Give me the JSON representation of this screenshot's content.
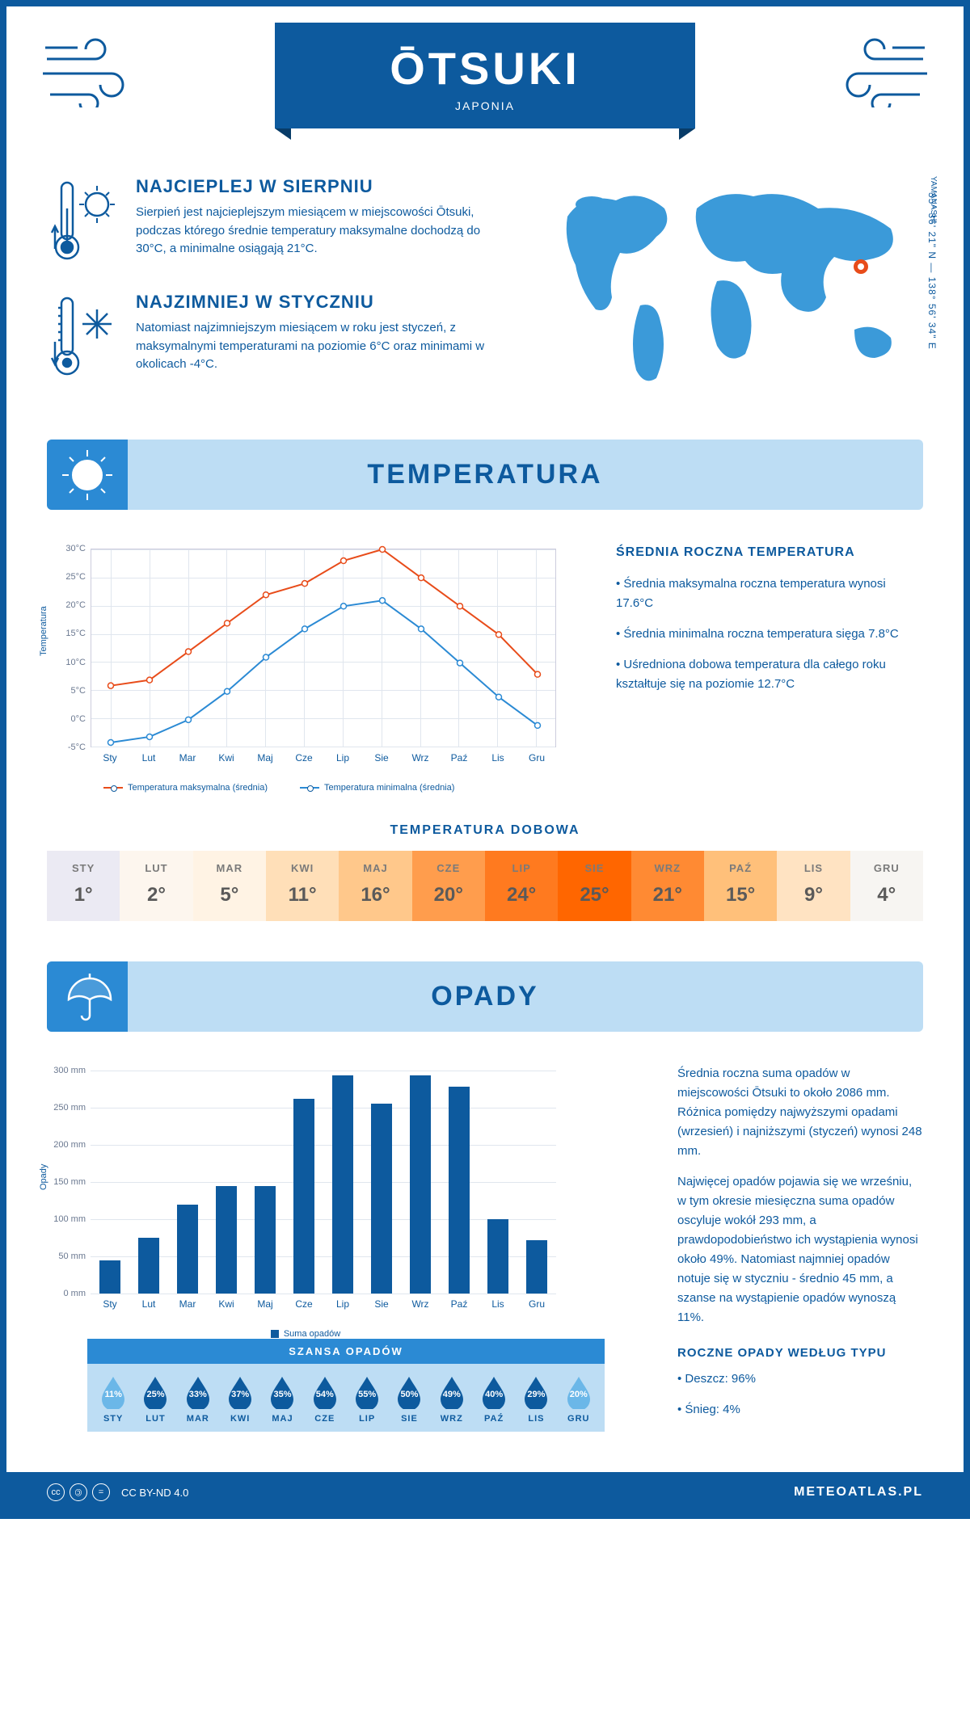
{
  "header": {
    "city": "ŌTSUKI",
    "country": "JAPONIA"
  },
  "coords": "35° 36' 21\" N — 138° 56' 34\" E",
  "region": "YAMANASHI",
  "marker": {
    "left_pct": 82,
    "top_pct": 38
  },
  "intro": {
    "hot": {
      "title": "NAJCIEPLEJ W SIERPNIU",
      "body": "Sierpień jest najcieplejszym miesiącem w miejscowości Ōtsuki, podczas którego średnie temperatury maksymalne dochodzą do 30°C, a minimalne osiągają 21°C."
    },
    "cold": {
      "title": "NAJZIMNIEJ W STYCZNIU",
      "body": "Natomiast najzimniejszym miesiącem w roku jest styczeń, z maksymalnymi temperaturami na poziomie 6°C oraz minimami w okolicach -4°C."
    }
  },
  "temp_section": {
    "title": "TEMPERATURA",
    "chart": {
      "type": "line",
      "ylabel": "Temperatura",
      "ymin": -5,
      "ymax": 30,
      "ystep": 5,
      "yunit": "°C",
      "months": [
        "Sty",
        "Lut",
        "Mar",
        "Kwi",
        "Maj",
        "Cze",
        "Lip",
        "Sie",
        "Wrz",
        "Paź",
        "Lis",
        "Gru"
      ],
      "series": [
        {
          "name": "Temperatura maksymalna (średnia)",
          "color": "#e84c1a",
          "values": [
            6,
            7,
            12,
            17,
            22,
            24,
            28,
            30,
            25,
            20,
            15,
            8
          ]
        },
        {
          "name": "Temperatura minimalna (średnia)",
          "color": "#2b8ad4",
          "values": [
            -4,
            -3,
            0,
            5,
            11,
            16,
            20,
            21,
            16,
            10,
            4,
            -1
          ]
        }
      ],
      "grid_color": "#e0e6ee",
      "label_fontsize": 11
    },
    "side": {
      "title": "ŚREDNIA ROCZNA TEMPERATURA",
      "bullets": [
        "Średnia maksymalna roczna temperatura wynosi 17.6°C",
        "Średnia minimalna roczna temperatura sięga 7.8°C",
        "Uśredniona dobowa temperatura dla całego roku kształtuje się na poziomie 12.7°C"
      ]
    },
    "daily": {
      "title": "TEMPERATURA DOBOWA",
      "months": [
        "STY",
        "LUT",
        "MAR",
        "KWI",
        "MAJ",
        "CZE",
        "LIP",
        "SIE",
        "WRZ",
        "PAŹ",
        "LIS",
        "GRU"
      ],
      "values": [
        "1°",
        "2°",
        "5°",
        "11°",
        "16°",
        "20°",
        "24°",
        "25°",
        "21°",
        "15°",
        "9°",
        "4°"
      ],
      "colors": [
        "#ebeaf3",
        "#fdf6ee",
        "#fff3e4",
        "#ffdfb8",
        "#ffc88b",
        "#ff9d4d",
        "#ff7a1f",
        "#ff6600",
        "#ff8a33",
        "#ffc07a",
        "#ffe3c2",
        "#f7f5f2"
      ]
    }
  },
  "precip_section": {
    "title": "OPADY",
    "chart": {
      "type": "bar",
      "ylabel": "Opady",
      "ymin": 0,
      "ymax": 300,
      "ystep": 50,
      "yunit": " mm",
      "months": [
        "Sty",
        "Lut",
        "Mar",
        "Kwi",
        "Maj",
        "Cze",
        "Lip",
        "Sie",
        "Wrz",
        "Paź",
        "Lis",
        "Gru"
      ],
      "values": [
        45,
        75,
        120,
        145,
        145,
        262,
        293,
        255,
        293,
        278,
        100,
        72
      ],
      "bar_color": "#0d5a9e",
      "legend": "Suma opadów"
    },
    "text1": "Średnia roczna suma opadów w miejscowości Ōtsuki to około 2086 mm. Różnica pomiędzy najwyższymi opadami (wrzesień) i najniższymi (styczeń) wynosi 248 mm.",
    "text2": "Najwięcej opadów pojawia się we wrześniu, w tym okresie miesięczna suma opadów oscyluje wokół 293 mm, a prawdopodobieństwo ich wystąpienia wynosi około 49%. Natomiast najmniej opadów notuje się w styczniu - średnio 45 mm, a szanse na wystąpienie opadów wynoszą 11%.",
    "chance": {
      "title": "SZANSA OPADÓW",
      "months": [
        "STY",
        "LUT",
        "MAR",
        "KWI",
        "MAJ",
        "CZE",
        "LIP",
        "SIE",
        "WRZ",
        "PAŹ",
        "LIS",
        "GRU"
      ],
      "values": [
        "11%",
        "25%",
        "33%",
        "37%",
        "35%",
        "54%",
        "55%",
        "50%",
        "49%",
        "40%",
        "29%",
        "20%"
      ],
      "drop_colors": [
        "#6bb7e8",
        "#0d5a9e",
        "#0d5a9e",
        "#0d5a9e",
        "#0d5a9e",
        "#0d5a9e",
        "#0d5a9e",
        "#0d5a9e",
        "#0d5a9e",
        "#0d5a9e",
        "#0d5a9e",
        "#6bb7e8"
      ]
    },
    "by_type": {
      "title": "ROCZNE OPADY WEDŁUG TYPU",
      "items": [
        "Deszcz: 96%",
        "Śnieg: 4%"
      ]
    }
  },
  "footer": {
    "license": "CC BY-ND 4.0",
    "site": "METEOATLAS.PL"
  }
}
